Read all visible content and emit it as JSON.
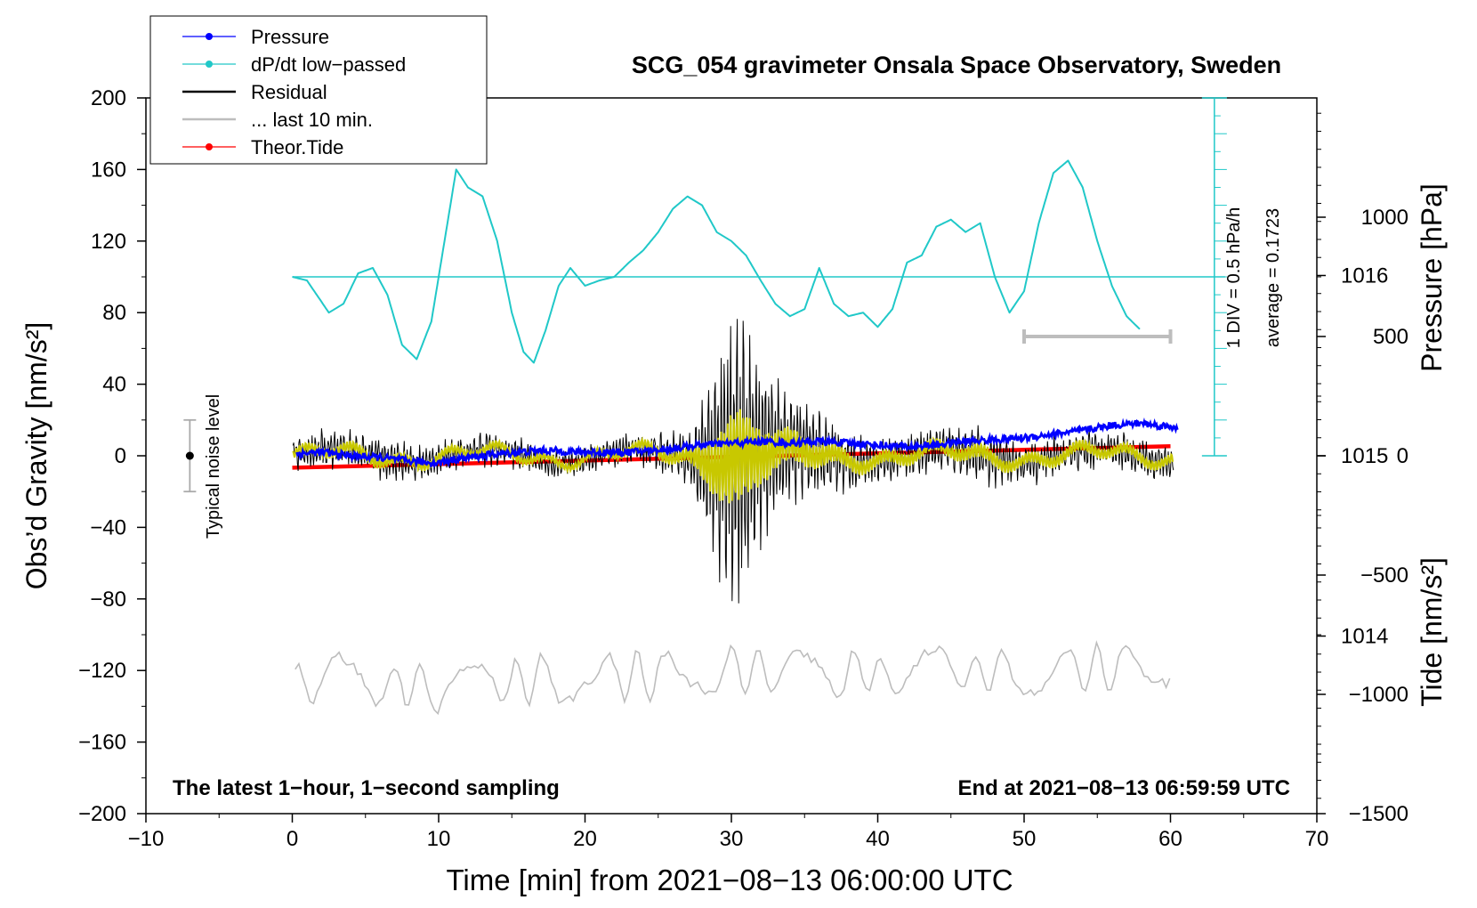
{
  "chart_data": {
    "type": "line",
    "title": "SCG_054 gravimeter Onsala Space Observatory, Sweden",
    "xlabel": "Time [min] from 2021−08−13 06:00:00 UTC",
    "ylabel_left": "Obs’d Gravity [nm/s²]",
    "ylabel_right_pressure": "Pressure [hPa]",
    "ylabel_right_tide": "Tide [nm/s²]",
    "xlim": [
      -10,
      70
    ],
    "ylim": [
      -200,
      200
    ],
    "pressure_lim": [
      1013.015,
      1016.985
    ],
    "tide_lim": [
      -1500,
      1500
    ],
    "x_ticks": [
      -10,
      0,
      10,
      20,
      30,
      40,
      50,
      60,
      70
    ],
    "x_tick_labels": [
      "−10",
      "0",
      "10",
      "20",
      "30",
      "40",
      "50",
      "60",
      "70"
    ],
    "y_ticks": [
      -200,
      -160,
      -120,
      -80,
      -40,
      0,
      40,
      80,
      120,
      160,
      200
    ],
    "y_tick_labels": [
      "−200",
      "−160",
      "−120",
      "−80",
      "−40",
      "0",
      "40",
      "80",
      "120",
      "160",
      "200"
    ],
    "pressure_ticks": [
      1014,
      1015,
      1016
    ],
    "pressure_tick_labels": [
      "1014",
      "1015",
      "1016"
    ],
    "tide_ticks": [
      -1500,
      -1000,
      -500,
      0,
      500,
      1000
    ],
    "tide_tick_labels": [
      "−1500",
      "−1000",
      "−500",
      "0",
      "500",
      "1000"
    ],
    "legend": {
      "position": "top-left",
      "entries": [
        {
          "label": "Pressure",
          "color": "#0000ff",
          "marker": "dot"
        },
        {
          "label": "dP/dt low−passed",
          "color": "#20c8c8",
          "marker": "dot"
        },
        {
          "label": "Residual",
          "color": "#000000",
          "marker": "none"
        },
        {
          "label": "... last 10 min.",
          "color": "#bdbdbd",
          "marker": "none"
        },
        {
          "label": "Theor.Tide",
          "color": "#ff0000",
          "marker": "dot"
        }
      ]
    },
    "annotations": {
      "bottom_left": "The latest 1−hour, 1−second sampling",
      "bottom_right": "End at 2021−08−13 06:59:59 UTC",
      "noise_label": "Typical noise level",
      "dpdt_scale": "1 DIV = 0.5 hPa/h",
      "dpdt_average": "average = 0.1723"
    },
    "noise_bar": {
      "x": -7,
      "y": 0,
      "low": -20,
      "high": 20
    },
    "last10_bar": {
      "x_start": 50,
      "x_end": 60,
      "tide_value": 500
    },
    "dpdt_axis": {
      "x": 63,
      "y_low": 0,
      "y_high": 200,
      "baseline_y": 100,
      "divisions": 20
    },
    "series": [
      {
        "name": "Pressure",
        "axis": "pressure",
        "color": "#0000ff",
        "x": [
          0,
          2,
          4,
          6,
          8,
          10,
          11,
          14,
          17,
          20,
          23,
          26,
          28,
          30,
          32,
          34,
          36,
          38,
          40,
          42,
          44,
          46,
          48,
          50,
          52,
          54,
          56,
          58,
          60
        ],
        "y": [
          1015.01,
          1015.02,
          1015.0,
          1014.99,
          1014.97,
          1014.96,
          1014.98,
          1015.01,
          1015.03,
          1015.02,
          1015.02,
          1015.04,
          1015.06,
          1015.07,
          1015.08,
          1015.07,
          1015.08,
          1015.07,
          1015.06,
          1015.05,
          1015.06,
          1015.08,
          1015.09,
          1015.1,
          1015.12,
          1015.14,
          1015.17,
          1015.18,
          1015.16
        ]
      },
      {
        "name": "dP/dt low−passed",
        "axis": "gravity",
        "color": "#20c8c8",
        "x": [
          0,
          1,
          2.5,
          3.5,
          4.5,
          5.5,
          6.5,
          7.5,
          8.5,
          9.5,
          10.5,
          11.2,
          12,
          13,
          14,
          15,
          15.8,
          16.5,
          17.3,
          18.2,
          19,
          20,
          21,
          22,
          23,
          24,
          25,
          26,
          27,
          28,
          29,
          30,
          31,
          32,
          33,
          34,
          35,
          36,
          37,
          38,
          39,
          40,
          41,
          42,
          43,
          44,
          45,
          46,
          47,
          48,
          49,
          50,
          51,
          52,
          53,
          54,
          55,
          56,
          57,
          58
        ],
        "y": [
          100,
          98,
          80,
          85,
          102,
          105,
          90,
          62,
          54,
          75,
          125,
          160,
          150,
          145,
          120,
          80,
          58,
          52,
          70,
          95,
          105,
          95,
          98,
          100,
          108,
          115,
          125,
          138,
          145,
          140,
          125,
          120,
          112,
          98,
          85,
          78,
          82,
          105,
          85,
          78,
          80,
          72,
          82,
          108,
          112,
          128,
          132,
          125,
          130,
          100,
          80,
          92,
          130,
          158,
          165,
          150,
          120,
          95,
          78,
          70
        ]
      },
      {
        "name": "Residual",
        "axis": "gravity",
        "color": "#000000",
        "x": [
          0,
          5,
          10,
          15,
          20,
          23,
          25,
          27,
          28,
          29,
          30,
          30.5,
          31,
          32,
          33,
          35,
          37,
          40,
          45,
          47,
          50,
          52,
          55,
          60
        ],
        "amplitude": [
          8,
          10,
          8,
          7,
          6,
          7,
          10,
          12,
          35,
          62,
          90,
          92,
          80,
          55,
          38,
          28,
          18,
          12,
          12,
          14,
          10,
          11,
          10,
          9
        ]
      },
      {
        "name": "... last 10 min.",
        "axis": "gravity",
        "color": "#bdbdbd",
        "x": [
          0,
          10,
          20,
          30,
          40,
          50,
          60
        ],
        "y": [
          -126,
          -128,
          -124,
          -120,
          -122,
          -120,
          -118
        ]
      },
      {
        "name": "Theor.Tide",
        "axis": "tide",
        "color": "#ff0000",
        "x": [
          0,
          10,
          20,
          30,
          40,
          50,
          60
        ],
        "y": [
          -50,
          -35,
          -20,
          -5,
          10,
          25,
          40
        ]
      }
    ]
  }
}
